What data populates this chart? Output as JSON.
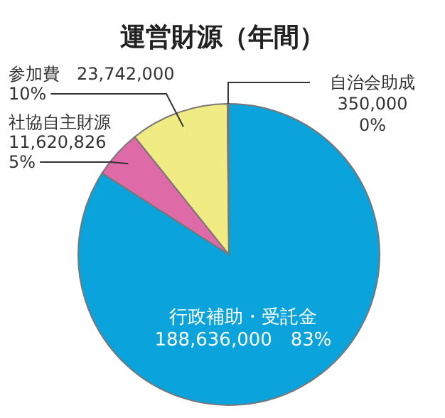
{
  "chart_data": {
    "type": "pie",
    "title": "運営財源（年間）",
    "categories": [
      "行政補助・受託金",
      "社協自主財源",
      "参加費",
      "自治会助成"
    ],
    "values": [
      188636000,
      11620826,
      23742000,
      350000
    ],
    "colors": [
      "#0aa3dc",
      "#de6aa8",
      "#f0eb82",
      "#5cb98f"
    ],
    "value_labels": [
      "188,636,000 83%",
      "11,620,826 5%",
      "23,742,000 10%",
      "350,000 0%"
    ]
  }
}
